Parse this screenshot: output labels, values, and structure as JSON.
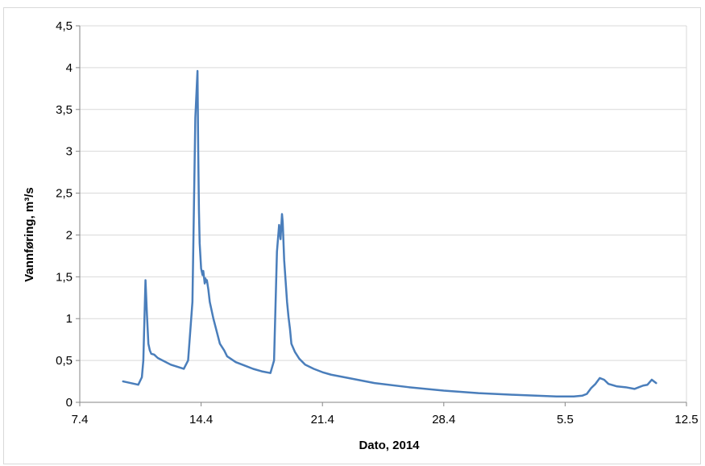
{
  "chart_data": {
    "type": "line",
    "title": "",
    "xlabel": "Dato, 2014",
    "ylabel": "Vannføring, m³/s",
    "x_ticks": [
      "7.4",
      "14.4",
      "21.4",
      "28.4",
      "5.5",
      "12.5"
    ],
    "x_tick_dates": [
      "2014-04-07",
      "2014-04-14",
      "2014-04-21",
      "2014-04-28",
      "2014-05-05",
      "2014-05-12"
    ],
    "y_ticks": [
      "0",
      "0,5",
      "1",
      "1,5",
      "2",
      "2,5",
      "3",
      "3,5",
      "4",
      "4,5"
    ],
    "xlim": [
      "2014-04-07",
      "2014-05-12"
    ],
    "ylim": [
      0,
      4.5
    ],
    "grid": true,
    "legend": "none",
    "color": "#4a7ebb",
    "series": [
      {
        "x": [
          "2014-04-09 12:00",
          "2014-04-10 04:00",
          "2014-04-10 09:00",
          "2014-04-10 14:00",
          "2014-04-10 16:00",
          "2014-04-10 19:00",
          "2014-04-10 21:00",
          "2014-04-10 23:00",
          "2014-04-11 01:00",
          "2014-04-11 03:00",
          "2014-04-11 07:00",
          "2014-04-11 12:00",
          "2014-04-12 06:00",
          "2014-04-13 00:00",
          "2014-04-13 06:00",
          "2014-04-13 12:00",
          "2014-04-13 16:00",
          "2014-04-13 19:00",
          "2014-04-13 20:00",
          "2014-04-13 21:00",
          "2014-04-13 22:00",
          "2014-04-14 00:00",
          "2014-04-14 02:00",
          "2014-04-14 03:00",
          "2014-04-14 05:00",
          "2014-04-14 06:00",
          "2014-04-14 07:00",
          "2014-04-14 08:00",
          "2014-04-14 10:00",
          "2014-04-14 12:00",
          "2014-04-14 14:00",
          "2014-04-14 17:00",
          "2014-04-14 20:00",
          "2014-04-15 02:00",
          "2014-04-15 08:00",
          "2014-04-15 12:00",
          "2014-04-16 00:00",
          "2014-04-16 12:00",
          "2014-04-17 00:00",
          "2014-04-17 12:00",
          "2014-04-18 00:00",
          "2014-04-18 05:00",
          "2014-04-18 09:00",
          "2014-04-18 12:00",
          "2014-04-18 14:00",
          "2014-04-18 16:00",
          "2014-04-18 17:00",
          "2014-04-18 19:00",
          "2014-04-18 21:00",
          "2014-04-18 23:00",
          "2014-04-19 01:00",
          "2014-04-19 03:00",
          "2014-04-19 05:00",
          "2014-04-19 10:00",
          "2014-04-19 16:00",
          "2014-04-20 00:00",
          "2014-04-20 12:00",
          "2014-04-21 00:00",
          "2014-04-21 12:00",
          "2014-04-22 12:00",
          "2014-04-24 00:00",
          "2014-04-26 00:00",
          "2014-04-28 00:00",
          "2014-04-30 00:00",
          "2014-05-02 00:00",
          "2014-05-04 12:00",
          "2014-05-05 12:00",
          "2014-05-06 00:00",
          "2014-05-06 06:00",
          "2014-05-06 12:00",
          "2014-05-06 18:00",
          "2014-05-07 00:00",
          "2014-05-07 06:00",
          "2014-05-07 12:00",
          "2014-05-08 00:00",
          "2014-05-08 12:00",
          "2014-05-09 00:00",
          "2014-05-09 06:00",
          "2014-05-09 12:00",
          "2014-05-09 18:00",
          "2014-05-10 00:00",
          "2014-05-10 06:00"
        ],
        "y": [
          0.25,
          0.22,
          0.21,
          0.3,
          0.5,
          1.46,
          1.05,
          0.7,
          0.62,
          0.58,
          0.57,
          0.53,
          0.45,
          0.4,
          0.5,
          1.2,
          3.4,
          3.96,
          3.0,
          2.3,
          1.9,
          1.6,
          1.52,
          1.57,
          1.42,
          1.48,
          1.44,
          1.46,
          1.35,
          1.2,
          1.12,
          1.0,
          0.9,
          0.7,
          0.62,
          0.55,
          0.48,
          0.44,
          0.4,
          0.37,
          0.35,
          0.5,
          1.8,
          2.12,
          1.95,
          2.25,
          2.15,
          1.7,
          1.45,
          1.2,
          1.02,
          0.88,
          0.7,
          0.6,
          0.52,
          0.45,
          0.4,
          0.36,
          0.33,
          0.29,
          0.23,
          0.18,
          0.14,
          0.11,
          0.09,
          0.07,
          0.07,
          0.08,
          0.1,
          0.17,
          0.22,
          0.29,
          0.27,
          0.22,
          0.19,
          0.18,
          0.16,
          0.18,
          0.2,
          0.21,
          0.27,
          0.23
        ]
      }
    ]
  }
}
